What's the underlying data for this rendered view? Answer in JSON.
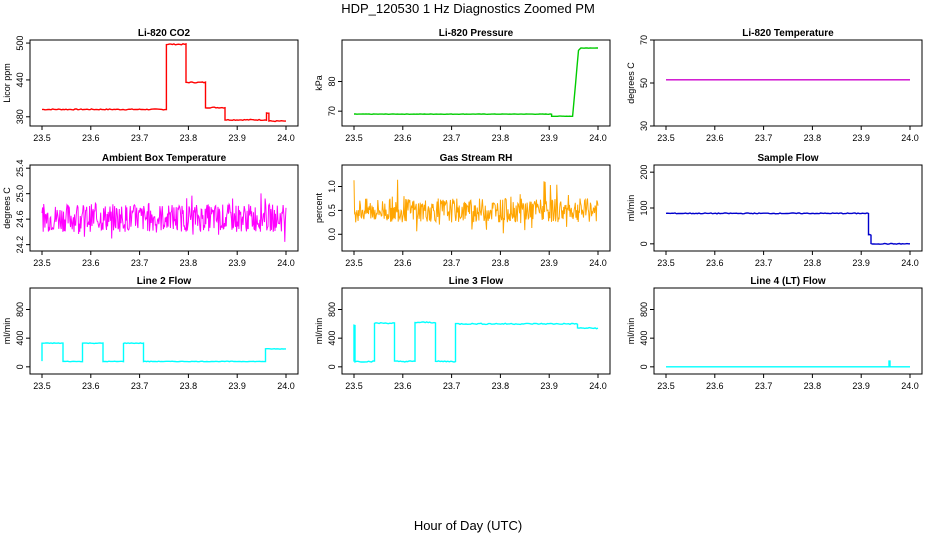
{
  "figure": {
    "title": "HDP_120530  1 Hz Diagnostics Zoomed PM",
    "xlabel": "Hour of Day (UTC)"
  },
  "chart_data": [
    {
      "type": "line",
      "title": "Li-820 CO2",
      "ylabel": "Licor ppm",
      "color": "#ff0000",
      "xlim": [
        23.5,
        24.0
      ],
      "ylim": [
        365,
        505
      ],
      "xticks": [
        "23.5",
        "23.6",
        "23.7",
        "23.8",
        "23.9",
        "24.0"
      ],
      "yticks": [
        "380",
        "440",
        "500"
      ],
      "kind": "step",
      "noise": 0.8,
      "series": [
        {
          "x": [
            23.5,
            23.755,
            23.755,
            23.795,
            23.795,
            23.835,
            23.835,
            23.875,
            23.875,
            23.96,
            23.96,
            23.965,
            23.965,
            24.0
          ],
          "y": [
            392,
            392,
            498,
            498,
            436,
            436,
            395,
            395,
            375,
            375,
            386,
            386,
            373,
            373
          ]
        }
      ]
    },
    {
      "type": "line",
      "title": "Li-820 Pressure",
      "ylabel": "kPa",
      "color": "#00cc00",
      "xlim": [
        23.5,
        24.0
      ],
      "ylim": [
        65,
        94
      ],
      "xticks": [
        "23.5",
        "23.6",
        "23.7",
        "23.8",
        "23.9",
        "24.0"
      ],
      "yticks": [
        "70",
        "80"
      ],
      "kind": "step",
      "noise": 0.05,
      "series": [
        {
          "x": [
            23.5,
            23.905,
            23.905,
            23.948,
            23.96,
            23.965,
            24.0
          ],
          "y": [
            69,
            69,
            68.3,
            68.3,
            90.5,
            91.3,
            91.3
          ]
        }
      ]
    },
    {
      "type": "line",
      "title": "Li-820 Temperature",
      "ylabel": "degrees C",
      "color": "#cc00cc",
      "xlim": [
        23.5,
        24.0
      ],
      "ylim": [
        30,
        70
      ],
      "xticks": [
        "23.5",
        "23.6",
        "23.7",
        "23.8",
        "23.9",
        "24.0"
      ],
      "yticks": [
        "30",
        "50",
        "70"
      ],
      "kind": "step",
      "noise": 0,
      "series": [
        {
          "x": [
            23.5,
            24.0
          ],
          "y": [
            51.5,
            51.5
          ]
        }
      ]
    },
    {
      "type": "line",
      "title": "Ambient Box Temperature",
      "ylabel": "degrees C",
      "color": "#ff00ff",
      "xlim": [
        23.5,
        24.0
      ],
      "ylim": [
        24.1,
        25.45
      ],
      "xticks": [
        "23.5",
        "23.6",
        "23.7",
        "23.8",
        "23.9",
        "24.0"
      ],
      "yticks": [
        "24.2",
        "24.6",
        "25.0",
        "25.4"
      ],
      "kind": "noise",
      "base": 24.62,
      "noise": 0.22,
      "spike": 0.4,
      "series": [
        {
          "x": [
            23.5,
            24.0
          ],
          "y": [
            24.62,
            24.62
          ]
        }
      ]
    },
    {
      "type": "line",
      "title": "Gas Stream RH",
      "ylabel": "percent",
      "color": "#ffa500",
      "xlim": [
        23.5,
        24.0
      ],
      "ylim": [
        -0.35,
        1.45
      ],
      "xticks": [
        "23.5",
        "23.6",
        "23.7",
        "23.8",
        "23.9",
        "24.0"
      ],
      "yticks": [
        "0.0",
        "0.5",
        "1.0"
      ],
      "kind": "noise",
      "base": 0.5,
      "noise": 0.25,
      "spike": 0.65,
      "series": [
        {
          "x": [
            23.5,
            24.0
          ],
          "y": [
            0.5,
            0.5
          ]
        }
      ]
    },
    {
      "type": "line",
      "title": "Sample Flow",
      "ylabel": "ml/min",
      "color": "#0000cc",
      "xlim": [
        23.5,
        24.0
      ],
      "ylim": [
        -20,
        220
      ],
      "xticks": [
        "23.5",
        "23.6",
        "23.7",
        "23.8",
        "23.9",
        "24.0"
      ],
      "yticks": [
        "0",
        "100",
        "200"
      ],
      "kind": "step",
      "noise": 1.2,
      "series": [
        {
          "x": [
            23.5,
            23.915,
            23.915,
            23.92,
            23.92,
            24.0
          ],
          "y": [
            85,
            85,
            25,
            25,
            0,
            0
          ]
        }
      ]
    },
    {
      "type": "line",
      "title": "Line 2 Flow",
      "ylabel": "ml/min",
      "color": "#00ffff",
      "xlim": [
        23.5,
        24.0
      ],
      "ylim": [
        -100,
        1100
      ],
      "xticks": [
        "23.5",
        "23.6",
        "23.7",
        "23.8",
        "23.9",
        "24.0"
      ],
      "yticks": [
        "0",
        "400",
        "800"
      ],
      "kind": "step",
      "noise": 4,
      "series": [
        {
          "x": [
            23.5,
            23.5,
            23.543,
            23.543,
            23.583,
            23.583,
            23.625,
            23.625,
            23.667,
            23.667,
            23.708,
            23.708,
            23.958,
            23.958,
            24.0
          ],
          "y": [
            80,
            330,
            330,
            75,
            75,
            330,
            330,
            75,
            75,
            330,
            330,
            75,
            75,
            250,
            250
          ]
        }
      ]
    },
    {
      "type": "line",
      "title": "Line 3 Flow",
      "ylabel": "ml/min",
      "color": "#00ffff",
      "xlim": [
        23.5,
        24.0
      ],
      "ylim": [
        -100,
        1100
      ],
      "xticks": [
        "23.5",
        "23.6",
        "23.7",
        "23.8",
        "23.9",
        "24.0"
      ],
      "yticks": [
        "0",
        "400",
        "800"
      ],
      "kind": "step",
      "noise": 8,
      "series": [
        {
          "x": [
            23.5,
            23.5,
            23.502,
            23.502,
            23.542,
            23.542,
            23.583,
            23.583,
            23.625,
            23.625,
            23.667,
            23.667,
            23.708,
            23.708,
            23.958,
            23.958,
            24.0
          ],
          "y": [
            80,
            580,
            580,
            75,
            75,
            610,
            610,
            75,
            75,
            620,
            620,
            75,
            75,
            600,
            600,
            540,
            540
          ]
        }
      ]
    },
    {
      "type": "line",
      "title": "Line 4 (LT) Flow",
      "ylabel": "ml/min",
      "color": "#00ffff",
      "xlim": [
        23.5,
        24.0
      ],
      "ylim": [
        -100,
        1100
      ],
      "xticks": [
        "23.5",
        "23.6",
        "23.7",
        "23.8",
        "23.9",
        "24.0"
      ],
      "yticks": [
        "0",
        "400",
        "800"
      ],
      "kind": "step",
      "noise": 0,
      "series": [
        {
          "x": [
            23.5,
            23.957,
            23.957,
            23.959,
            23.959,
            24.0
          ],
          "y": [
            0,
            0,
            80,
            80,
            0,
            0
          ]
        }
      ]
    }
  ]
}
